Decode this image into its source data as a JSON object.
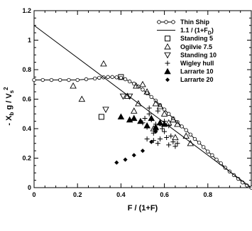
{
  "chart_data": {
    "type": "scatter",
    "title": "",
    "xlabel": "F / (1+F)",
    "ylabel_parts": {
      "main": "- X",
      "sub1": "b",
      "mid": " g / V",
      "sub2": "s",
      "sup": "2"
    },
    "xlim": [
      0,
      1
    ],
    "ylim": [
      0,
      1.2
    ],
    "xticks": [
      0,
      0.2,
      0.4,
      0.6,
      0.8
    ],
    "xtick_labels": [
      "0",
      "0.2",
      "0.4",
      "0.6",
      "0.8"
    ],
    "yticks": [
      0,
      0.2,
      0.4,
      0.6,
      0.8,
      1.0,
      1.2
    ],
    "ytick_labels": [
      "0",
      "0.2",
      "0.4",
      "0.6",
      "0.8",
      "1",
      "1.2"
    ],
    "grid": false,
    "legend_position": "top-right",
    "series": [
      {
        "name": "Thin Ship",
        "kind": "line-circle",
        "x": [
          0,
          0.04,
          0.08,
          0.12,
          0.16,
          0.2,
          0.24,
          0.28,
          0.3,
          0.32,
          0.34,
          0.36,
          0.38,
          0.4,
          0.42,
          0.44,
          0.46,
          0.48,
          0.5,
          0.52,
          0.54,
          0.56,
          0.58,
          0.6,
          0.62,
          0.64,
          0.66,
          0.68,
          0.7,
          0.72,
          0.74,
          0.76,
          0.78,
          0.8,
          0.82,
          0.84,
          0.86,
          0.88,
          0.9,
          0.92,
          0.94,
          0.96,
          0.98,
          1.0
        ],
        "y": [
          0.73,
          0.73,
          0.73,
          0.73,
          0.73,
          0.73,
          0.735,
          0.74,
          0.745,
          0.748,
          0.75,
          0.75,
          0.748,
          0.745,
          0.735,
          0.72,
          0.705,
          0.685,
          0.665,
          0.64,
          0.615,
          0.59,
          0.56,
          0.53,
          0.5,
          0.47,
          0.445,
          0.415,
          0.39,
          0.36,
          0.33,
          0.305,
          0.275,
          0.245,
          0.22,
          0.19,
          0.165,
          0.135,
          0.11,
          0.085,
          0.06,
          0.035,
          0.015,
          0.0
        ]
      },
      {
        "name": "1.1 / (1+F",
        "name_sub": "D",
        "name_end": ")",
        "kind": "function-line",
        "x": [
          0,
          1
        ],
        "y": [
          1.1,
          0.0
        ]
      },
      {
        "name": "Standing 5",
        "kind": "open-square",
        "x": [
          0.31,
          0.4
        ],
        "y": [
          0.48,
          0.75
        ]
      },
      {
        "name": "Ogilvie 7.5",
        "kind": "open-triangle-up",
        "x": [
          0.18,
          0.22,
          0.32,
          0.47,
          0.5,
          0.56,
          0.58,
          0.6,
          0.64,
          0.66,
          0.72,
          0.52,
          0.48,
          0.62,
          0.46,
          0.55,
          0.43,
          0.7,
          0.65
        ],
        "y": [
          0.69,
          0.6,
          0.84,
          0.69,
          0.7,
          0.57,
          0.55,
          0.5,
          0.46,
          0.43,
          0.3,
          0.65,
          0.57,
          0.44,
          0.52,
          0.4,
          0.62,
          0.35,
          0.34
        ]
      },
      {
        "name": "Standing 10",
        "kind": "open-triangle-down",
        "x": [
          0.33,
          0.41,
          0.44
        ],
        "y": [
          0.53,
          0.62,
          0.62
        ]
      },
      {
        "name": "Wigley hull",
        "kind": "plus",
        "x": [
          0.5,
          0.51,
          0.52,
          0.53,
          0.54,
          0.55,
          0.56,
          0.57,
          0.58,
          0.59,
          0.6,
          0.61,
          0.62,
          0.63,
          0.64,
          0.65,
          0.52,
          0.55,
          0.57,
          0.6,
          0.62,
          0.66,
          0.53,
          0.56
        ],
        "y": [
          0.44,
          0.47,
          0.41,
          0.5,
          0.46,
          0.32,
          0.43,
          0.52,
          0.33,
          0.4,
          0.38,
          0.34,
          0.29,
          0.35,
          0.31,
          0.28,
          0.33,
          0.37,
          0.3,
          0.45,
          0.42,
          0.3,
          0.54,
          0.39
        ]
      },
      {
        "name": "Larrarte 10",
        "kind": "filled-triangle-up",
        "x": [
          0.4,
          0.44,
          0.46,
          0.49,
          0.52,
          0.54,
          0.56,
          0.58,
          0.6
        ],
        "y": [
          0.48,
          0.46,
          0.47,
          0.45,
          0.42,
          0.47,
          0.41,
          0.44,
          0.43
        ]
      },
      {
        "name": "Larrarte 20",
        "kind": "filled-diamond",
        "x": [
          0.38,
          0.42,
          0.46,
          0.5,
          0.54,
          0.56,
          0.58
        ],
        "y": [
          0.17,
          0.19,
          0.22,
          0.25,
          0.31,
          0.38,
          0.43
        ]
      }
    ]
  }
}
